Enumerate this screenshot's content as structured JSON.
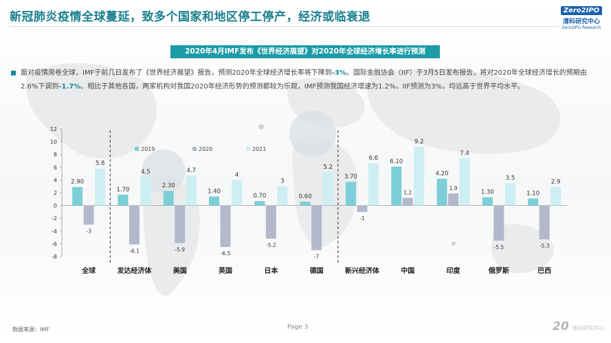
{
  "title": "新冠肺炎疫情全球蔓延，致多个国家和地区停工停产，经济或临衰退",
  "logo": {
    "badge": "Zero2IPO",
    "cn": "清科研究中心",
    "en": "Zero2IPO Research"
  },
  "banner": "2020年4月IMF发布《世界经济展望》对2020年全球经济增长率进行预测",
  "paragraph": {
    "p1": "面对疫情席卷全球，IMF于前几日发布了《世界经济展望》报告，预测2020年全球经济增长率将下降到",
    "h1": "-3%",
    "p2": "。国际金融协会（IIF）于3月5日发布报告，将对2020年全球经济增长的预期由2.6%下调到",
    "h2": "-1.7%",
    "p3": "。相比于其他各国，两家机构对我国2020年经济形势的预测都较为乐观，IMF预测我国经济增速为1.2%，IIF预测为3%，均远高于世界平均水平。"
  },
  "footer": {
    "source": "数据来源：IMF",
    "page": "Page  3",
    "brand_num": "20",
    "brand_text": "清科研究中心"
  },
  "colors": {
    "s2019": "#7ccfd6",
    "s2020": "#b3b9cb",
    "s2021": "#cdeef2",
    "title": "#1a7f8e",
    "banner": "#1a9ba6"
  },
  "chart_data": {
    "type": "bar",
    "categories": [
      "全球",
      "发达经济体",
      "美国",
      "英国",
      "日本",
      "德国",
      "新兴经济体",
      "中国",
      "印度",
      "俄罗斯",
      "巴西"
    ],
    "series": [
      {
        "name": "2019",
        "values": [
          2.9,
          1.7,
          2.3,
          1.4,
          0.7,
          0.6,
          3.7,
          6.1,
          4.2,
          1.3,
          1.1
        ],
        "labels": [
          "2.90",
          "1.70",
          "2.30",
          "1.40",
          "0.70",
          "0.60",
          "3.70",
          "6.10",
          "4.20",
          "1.30",
          "1.10"
        ]
      },
      {
        "name": "2020",
        "values": [
          -3,
          -6.1,
          -5.9,
          -6.5,
          -5.2,
          -7,
          -1,
          1.2,
          1.9,
          -5.5,
          -5.3
        ],
        "labels": [
          "-3",
          "-6.1",
          "-5.9",
          "-6.5",
          "-5.2",
          "-7",
          "-1",
          "1.2",
          "1.9",
          "-5.5",
          "-5.3"
        ]
      },
      {
        "name": "2021",
        "values": [
          5.8,
          4.5,
          4.7,
          4,
          3,
          5.2,
          6.6,
          9.2,
          7.4,
          3.5,
          2.9
        ],
        "labels": [
          "5.8",
          "4.5",
          "4.7",
          "4",
          "3",
          "5.2",
          "6.6",
          "9.2",
          "7.4",
          "3.5",
          "2.9"
        ]
      }
    ],
    "yticks": [
      "12",
      "10",
      "8",
      "6",
      "4",
      "2",
      "0",
      "-2",
      "-4",
      "-6",
      "-8"
    ],
    "ylim": [
      -8,
      12
    ],
    "legend": "top-left",
    "grid": false
  }
}
